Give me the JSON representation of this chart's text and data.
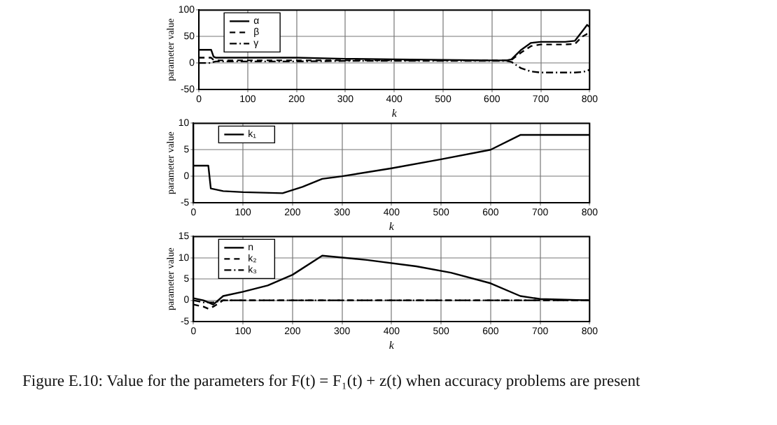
{
  "chart_data": [
    {
      "type": "line",
      "xlabel": "k",
      "ylabel": "parameter value",
      "x": [
        0,
        25,
        30,
        35,
        100,
        200,
        300,
        400,
        500,
        600,
        630,
        640,
        660,
        680,
        700,
        750,
        770,
        785,
        795,
        800
      ],
      "xlim": [
        0,
        800
      ],
      "xticks": [
        0,
        100,
        200,
        300,
        400,
        500,
        600,
        700,
        800
      ],
      "ylim": [
        -50,
        100
      ],
      "yticks": [
        -50,
        0,
        50,
        100
      ],
      "grid": true,
      "legend": "top left",
      "marker": "none",
      "series": [
        {
          "name": "α",
          "color": "#000000",
          "line_style": "solid",
          "values": [
            25,
            25,
            12,
            10,
            10,
            10,
            8,
            7,
            6,
            5,
            5,
            7,
            25,
            38,
            40,
            40,
            42,
            60,
            72,
            68
          ]
        },
        {
          "name": "β",
          "color": "#000000",
          "line_style": "dashed",
          "values": [
            10,
            10,
            6,
            5,
            5,
            5,
            5,
            5,
            5,
            5,
            5,
            6,
            20,
            32,
            35,
            35,
            36,
            50,
            55,
            55
          ]
        },
        {
          "name": "γ",
          "color": "#000000",
          "line_style": "dotted",
          "values": [
            0,
            0,
            2,
            3,
            3,
            3,
            4,
            4,
            4,
            4,
            4,
            2,
            -10,
            -16,
            -18,
            -18,
            -18,
            -17,
            -15,
            -12
          ]
        }
      ]
    },
    {
      "type": "line",
      "xlabel": "k",
      "ylabel": "parameter value",
      "x": [
        0,
        30,
        35,
        60,
        100,
        180,
        220,
        260,
        300,
        400,
        500,
        600,
        660,
        700,
        800
      ],
      "xlim": [
        0,
        800
      ],
      "xticks": [
        0,
        100,
        200,
        300,
        400,
        500,
        600,
        700,
        800
      ],
      "ylim": [
        -5,
        10
      ],
      "yticks": [
        -5,
        0,
        5,
        10
      ],
      "grid": true,
      "legend": "top left",
      "marker": "none",
      "series": [
        {
          "name": "k₁",
          "color": "#000000",
          "line_style": "solid",
          "values": [
            2,
            2,
            -2.3,
            -2.8,
            -3,
            -3.2,
            -2,
            -0.5,
            0,
            1.5,
            3.2,
            5,
            7.8,
            7.8,
            7.8
          ]
        }
      ]
    },
    {
      "type": "line",
      "xlabel": "k",
      "ylabel": "parameter value",
      "x": [
        0,
        20,
        30,
        40,
        60,
        100,
        150,
        200,
        260,
        350,
        450,
        520,
        600,
        660,
        700,
        800
      ],
      "xlim": [
        0,
        800
      ],
      "xticks": [
        0,
        100,
        200,
        300,
        400,
        500,
        600,
        700,
        800
      ],
      "ylim": [
        -5,
        15
      ],
      "yticks": [
        -5,
        0,
        5,
        10,
        15
      ],
      "grid": true,
      "legend": "top left",
      "marker": "none",
      "annotations": [
        "Figure E.10: Value for the parameters for F(t) = F₁(t) + z(t) when accuracy problems are present"
      ],
      "series": [
        {
          "name": "n",
          "color": "#000000",
          "line_style": "solid",
          "values": [
            0.5,
            0,
            -0.5,
            -1,
            1,
            2,
            3.5,
            6,
            10.5,
            9.5,
            8,
            6.5,
            4,
            1,
            0.3,
            0
          ]
        },
        {
          "name": "k₂",
          "color": "#000000",
          "line_style": "dashed",
          "values": [
            -1,
            -1.5,
            -2,
            -1.5,
            0,
            0,
            0,
            0,
            0,
            0,
            0,
            0,
            0,
            0,
            0,
            0
          ]
        },
        {
          "name": "k₃",
          "color": "#000000",
          "line_style": "dotted",
          "values": [
            0,
            -0.5,
            -0.5,
            -0.5,
            0,
            0,
            0,
            0,
            0,
            0,
            0,
            0,
            0,
            0,
            0,
            0
          ]
        }
      ]
    }
  ]
}
